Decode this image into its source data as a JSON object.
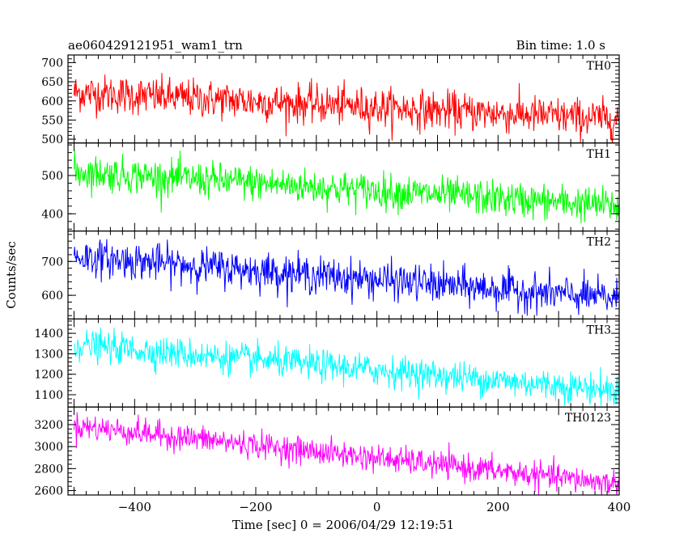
{
  "header": {
    "title": "ae060429121951_wam1_trn",
    "bin_time": "Bin time: 1.0 s"
  },
  "chart_data": {
    "type": "line",
    "xlabel": "Time [sec] 0 = 2006/04/29 12:19:51",
    "ylabel": "Counts/sec",
    "xlim": [
      -510,
      400
    ],
    "x_ticks": [
      -400,
      -200,
      0,
      200,
      400
    ],
    "x_tick_labels": [
      "−400",
      "−200",
      "0",
      "200",
      "400"
    ],
    "x_range": [
      -500,
      400
    ],
    "panels": [
      {
        "name": "TH0",
        "color": "#ff0000",
        "ylim": [
          490,
          720
        ],
        "y_ticks": [
          500,
          550,
          600,
          650,
          700
        ],
        "y_tick_labels": [
          "500",
          "550",
          "600",
          "650",
          "700"
        ],
        "mean_start": 622,
        "mean_end": 552,
        "noise_sd": 25
      },
      {
        "name": "TH1",
        "color": "#00ff00",
        "ylim": [
          355,
          585
        ],
        "y_ticks": [
          400,
          500
        ],
        "y_tick_labels": [
          "400",
          "500"
        ],
        "mean_start": 510,
        "mean_end": 420,
        "noise_sd": 23
      },
      {
        "name": "TH2",
        "color": "#0000ff",
        "ylim": [
          530,
          790
        ],
        "y_ticks": [
          600,
          700
        ],
        "y_tick_labels": [
          "600",
          "700"
        ],
        "mean_start": 715,
        "mean_end": 590,
        "noise_sd": 27
      },
      {
        "name": "TH3",
        "color": "#00ffff",
        "ylim": [
          1040,
          1470
        ],
        "y_ticks": [
          1100,
          1200,
          1300,
          1400
        ],
        "y_tick_labels": [
          "1100",
          "1200",
          "1300",
          "1400"
        ],
        "mean_start": 1345,
        "mean_end": 1120,
        "noise_sd": 38
      },
      {
        "name": "TH0123",
        "color": "#ff00ff",
        "ylim": [
          2560,
          3360
        ],
        "y_ticks": [
          2600,
          2800,
          3000,
          3200
        ],
        "y_tick_labels": [
          "2600",
          "2800",
          "3000",
          "3200"
        ],
        "mean_start": 3190,
        "mean_end": 2660,
        "noise_sd": 60
      }
    ]
  }
}
